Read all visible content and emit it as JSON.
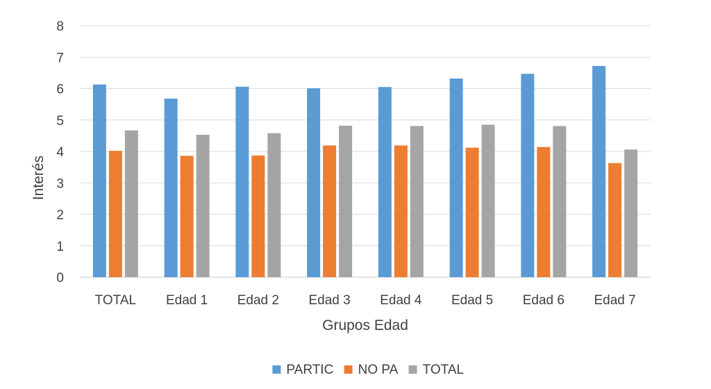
{
  "chart_data": {
    "type": "bar",
    "title": "",
    "xlabel": "Grupos Edad",
    "ylabel": "Interés",
    "ylim": [
      0,
      8
    ],
    "yticks": [
      "0",
      "1",
      "2",
      "3",
      "4",
      "5",
      "6",
      "7",
      "8"
    ],
    "grid": true,
    "legend_position": "bottom",
    "categories": [
      "TOTAL",
      "Edad 1",
      "Edad 2",
      "Edad 3",
      "Edad 4",
      "Edad 5",
      "Edad 6",
      "Edad 7"
    ],
    "series": [
      {
        "name": "PARTIC",
        "color": "#5b9bd5",
        "values": [
          6.13,
          5.68,
          6.06,
          6.01,
          6.05,
          6.32,
          6.47,
          6.72
        ]
      },
      {
        "name": "NO PA",
        "color": "#ed7d31",
        "values": [
          4.02,
          3.86,
          3.87,
          4.19,
          4.19,
          4.12,
          4.14,
          3.63
        ]
      },
      {
        "name": "TOTAL",
        "color": "#a5a5a5",
        "values": [
          4.67,
          4.53,
          4.58,
          4.82,
          4.81,
          4.85,
          4.81,
          4.06
        ]
      }
    ]
  }
}
